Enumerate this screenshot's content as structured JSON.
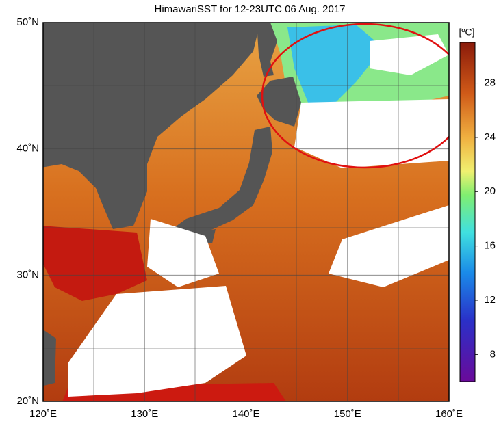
{
  "map": {
    "title": "HimawariSST for 12-23UTC 06 Aug. 2017",
    "lon_range": [
      120,
      160
    ],
    "lat_range": [
      20,
      50
    ],
    "lon_ticks": [
      {
        "value": 120,
        "label": "120˚E"
      },
      {
        "value": 130,
        "label": "130˚E"
      },
      {
        "value": 140,
        "label": "140˚E"
      },
      {
        "value": 150,
        "label": "150˚E"
      },
      {
        "value": 160,
        "label": "160˚E"
      }
    ],
    "lat_ticks": [
      {
        "value": 20,
        "label": "20˚N"
      },
      {
        "value": 30,
        "label": "30˚N"
      },
      {
        "value": 40,
        "label": "40˚N"
      },
      {
        "value": 50,
        "label": "50˚N"
      }
    ],
    "colorbar": {
      "unit": "[ºC]",
      "range": [
        6,
        31
      ],
      "ticks": [
        8,
        12,
        16,
        20,
        24,
        28
      ]
    }
  }
}
